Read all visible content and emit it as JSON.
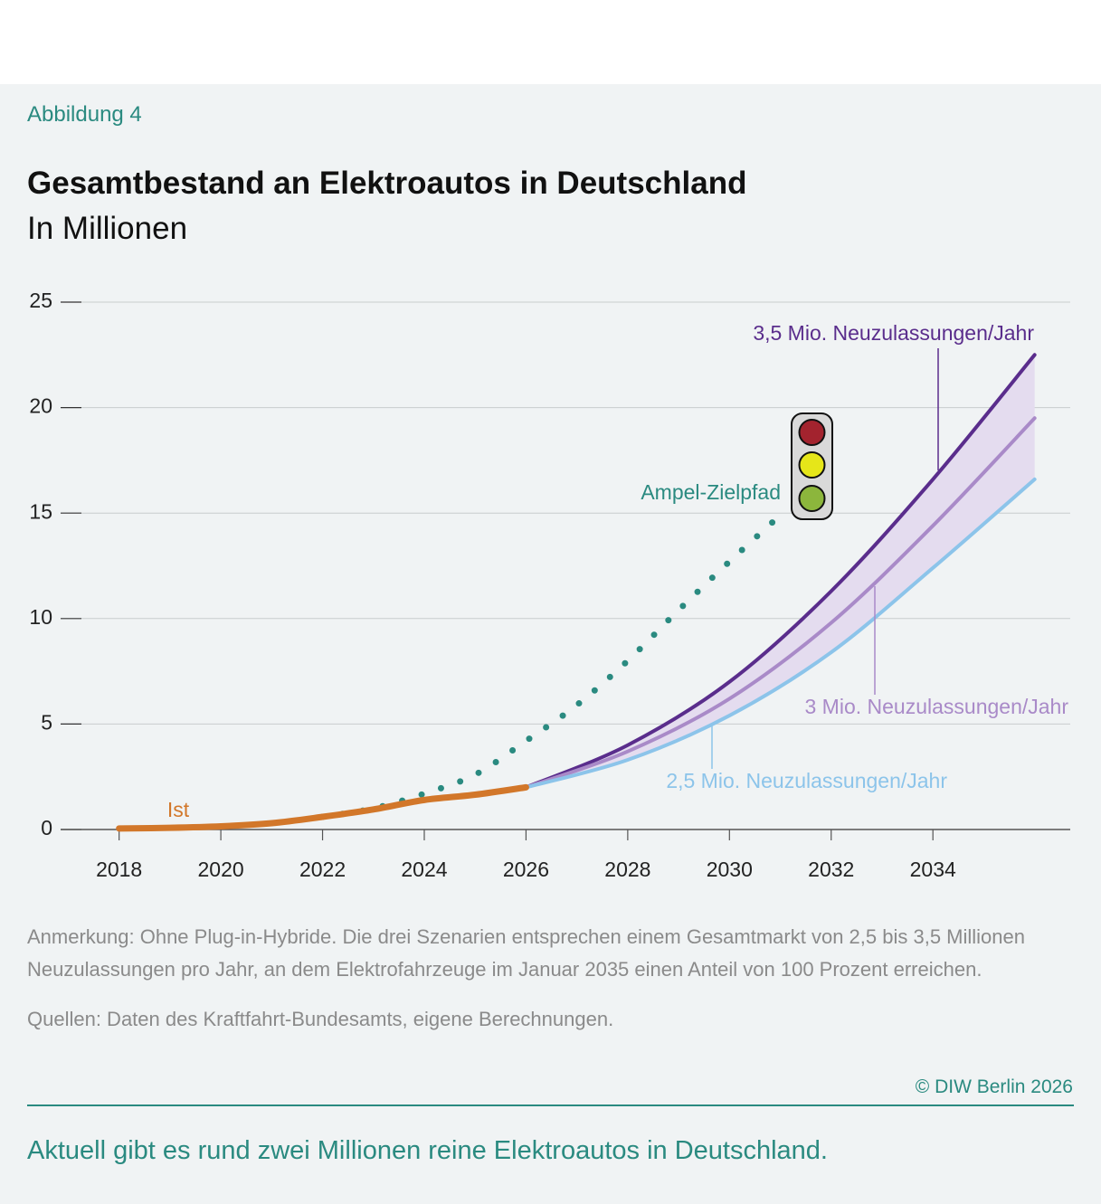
{
  "header": {
    "figure_label": "Abbildung 4",
    "title": "Gesamtbestand an Elektroautos in Deutschland",
    "subtitle": "In Millionen"
  },
  "chart_data": {
    "type": "line",
    "series": [
      {
        "name": "Ist",
        "color": "#d2772a",
        "style": "solid",
        "x": [
          2018,
          2019,
          2020,
          2021,
          2022,
          2023,
          2024,
          2025,
          2026
        ],
        "values": [
          0.05,
          0.08,
          0.15,
          0.3,
          0.6,
          0.95,
          1.4,
          1.65,
          2.0
        ]
      },
      {
        "name": "Ampel-Zielpfad",
        "color": "#2a8a80",
        "style": "dotted",
        "x": [
          2022,
          2023,
          2024,
          2025,
          2026,
          2027,
          2028,
          2029,
          2030,
          2031
        ],
        "values": [
          0.6,
          1.0,
          1.7,
          2.6,
          4.2,
          5.9,
          8.0,
          10.4,
          12.7,
          14.9
        ]
      },
      {
        "name": "3,5 Mio. Neuzulassungen/Jahr",
        "color": "#5a2d8c",
        "style": "solid",
        "x": [
          2026,
          2028,
          2030,
          2032,
          2034,
          2036
        ],
        "values": [
          2.0,
          4.0,
          7.0,
          11.3,
          16.6,
          22.5
        ]
      },
      {
        "name": "3 Mio. Neuzulassungen/Jahr",
        "color": "#a98ac8",
        "style": "solid",
        "x": [
          2026,
          2028,
          2030,
          2032,
          2034,
          2036
        ],
        "values": [
          2.0,
          3.7,
          6.2,
          9.8,
          14.4,
          19.5
        ]
      },
      {
        "name": "2,5 Mio. Neuzulassungen/Jahr",
        "color": "#8cc4ea",
        "style": "solid",
        "x": [
          2026,
          2028,
          2030,
          2032,
          2034,
          2036
        ],
        "values": [
          2.0,
          3.3,
          5.4,
          8.4,
          12.4,
          16.6
        ]
      }
    ],
    "xlim": [
      2016.85,
      2036.7
    ],
    "xticks": [
      2018,
      2020,
      2022,
      2024,
      2026,
      2028,
      2030,
      2032,
      2034
    ],
    "ylim": [
      0,
      25
    ],
    "yticks": [
      0,
      5,
      10,
      15,
      20,
      25
    ],
    "grid": true
  },
  "footer": {
    "note": "Anmerkung: Ohne Plug-in-Hybride. Die drei Szenarien entsprechen einem Gesamtmarkt von 2,5 bis 3,5 Millionen Neuzulassungen pro Jahr, an dem Elektrofahrzeuge im Januar 2035 einen Anteil von 100 Prozent erreichen.",
    "source": "Quellen: Daten des Kraftfahrt-Bundesamts, eigene Berechnungen.",
    "copyright": "© DIW Berlin 2026",
    "caption": "Aktuell gibt es rund zwei Millionen reine Elektroautos in Deutschland."
  }
}
